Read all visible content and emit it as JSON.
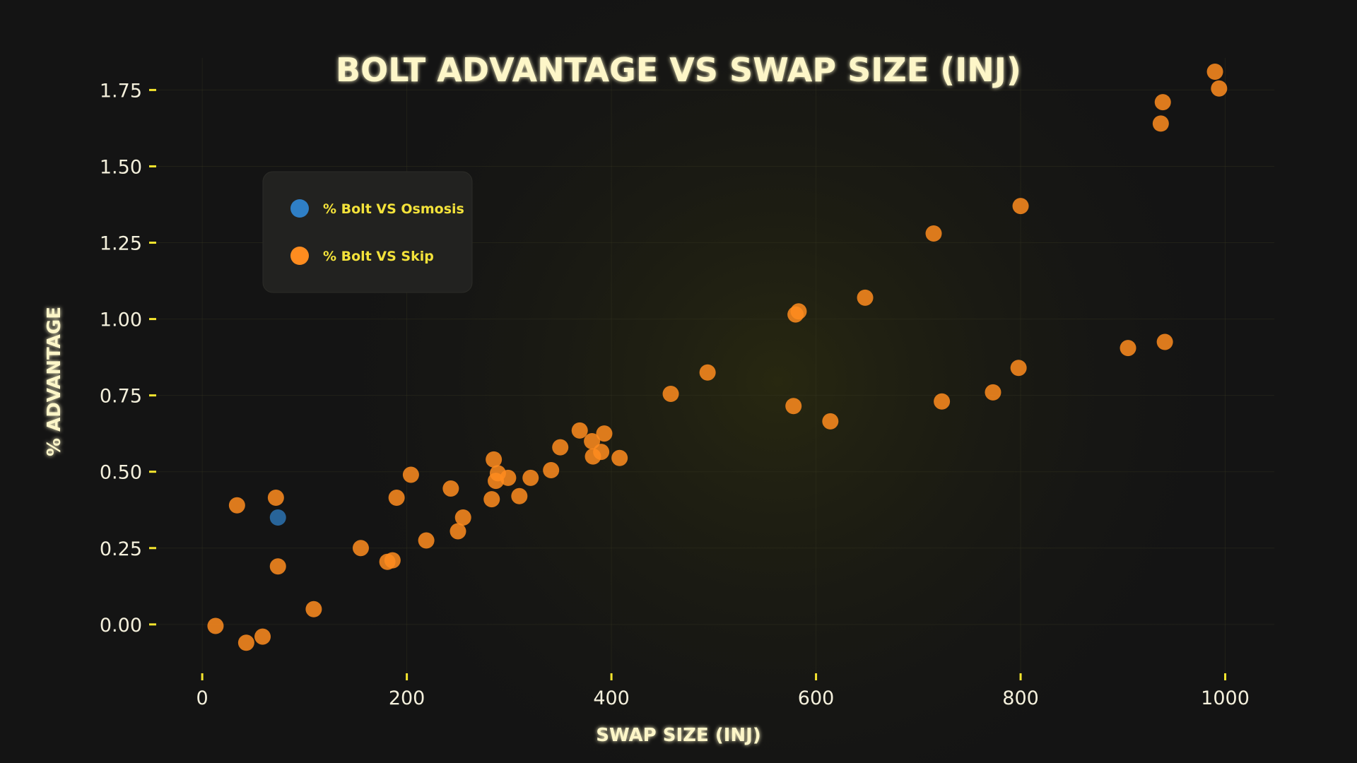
{
  "chart_data": {
    "type": "scatter",
    "title": "BOLT ADVANTAGE VS SWAP SIZE (INJ)",
    "xlabel": "SWAP SIZE (INJ)",
    "ylabel": "% ADVANTAGE",
    "xlim": [
      -45,
      1048
    ],
    "ylim": [
      -0.16,
      1.855
    ],
    "xticks": [
      0,
      200,
      400,
      600,
      800,
      1000
    ],
    "yticks": [
      0.0,
      0.25,
      0.5,
      0.75,
      1.0,
      1.25,
      1.5,
      1.75
    ],
    "xtick_labels": [
      "0",
      "200",
      "400",
      "600",
      "800",
      "1000"
    ],
    "ytick_labels": [
      "0.00",
      "0.25",
      "0.50",
      "0.75",
      "1.00",
      "1.25",
      "1.50",
      "1.75"
    ],
    "grid": true,
    "legend_position": "upper-left",
    "colors": {
      "background": "#141414",
      "axis": "#f5e52e",
      "text": "#fdf6c8",
      "legend_text": "#f3e23a",
      "legend_box": "#222220"
    },
    "series": [
      {
        "name": "% Bolt VS Osmosis",
        "color": "#2f7fc6",
        "x": [
          74
        ],
        "y": [
          0.35
        ]
      },
      {
        "name": "% Bolt VS Skip",
        "color": "#ff8c1f",
        "x": [
          13,
          34,
          43,
          59,
          72,
          74,
          109,
          155,
          181,
          186,
          190,
          204,
          219,
          243,
          250,
          255,
          283,
          285,
          287,
          289,
          299,
          310,
          321,
          341,
          350,
          369,
          381,
          382,
          390,
          393,
          408,
          458,
          494,
          578,
          580,
          583,
          614,
          648,
          715,
          723,
          773,
          798,
          800,
          905,
          937,
          939,
          941,
          990,
          994
        ],
        "y": [
          -0.005,
          0.39,
          -0.06,
          -0.04,
          0.415,
          0.19,
          0.05,
          0.25,
          0.205,
          0.21,
          0.415,
          0.49,
          0.275,
          0.445,
          0.305,
          0.35,
          0.41,
          0.54,
          0.47,
          0.495,
          0.48,
          0.42,
          0.48,
          0.505,
          0.58,
          0.635,
          0.6,
          0.55,
          0.565,
          0.625,
          0.545,
          0.755,
          0.825,
          0.715,
          1.015,
          1.025,
          0.665,
          1.07,
          1.28,
          0.73,
          0.76,
          0.84,
          1.37,
          0.905,
          1.64,
          1.71,
          0.925,
          1.81,
          1.755
        ]
      }
    ]
  }
}
